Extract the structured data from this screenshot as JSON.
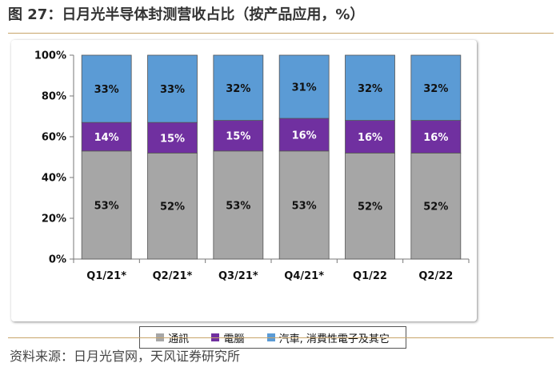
{
  "title": "图 27：日月光半导体封测营收占比（按产品应用，%）",
  "source": "资料来源：日月光官网，天风证券研究所",
  "colors": {
    "accent_rule": "#c8a46a",
    "comms": "#a6a6a6",
    "computer": "#7030a0",
    "auto_consumer": "#5b9bd5"
  },
  "chart_data": {
    "type": "bar",
    "stacked": true,
    "percent": true,
    "categories": [
      "Q1/21*",
      "Q2/21*",
      "Q3/21*",
      "Q4/21*",
      "Q1/22",
      "Q2/22"
    ],
    "series": [
      {
        "name": "通訊",
        "values": [
          53,
          52,
          53,
          53,
          52,
          52
        ],
        "labels": [
          "53%",
          "52%",
          "53%",
          "53%",
          "52%",
          "52%"
        ]
      },
      {
        "name": "電腦",
        "values": [
          14,
          15,
          15,
          16,
          16,
          16
        ],
        "labels": [
          "14%",
          "15%",
          "15%",
          "16%",
          "16%",
          "16%"
        ]
      },
      {
        "name": "汽車, 消費性電子及其它",
        "values": [
          33,
          33,
          32,
          31,
          32,
          32
        ],
        "labels": [
          "33%",
          "33%",
          "32%",
          "31%",
          "32%",
          "32%"
        ]
      }
    ],
    "ylim": [
      0,
      100
    ],
    "yticks": [
      "0%",
      "20%",
      "40%",
      "60%",
      "80%",
      "100%"
    ],
    "ytick_values": [
      0,
      20,
      40,
      60,
      80,
      100
    ],
    "legend_position": "bottom",
    "grid": false
  }
}
